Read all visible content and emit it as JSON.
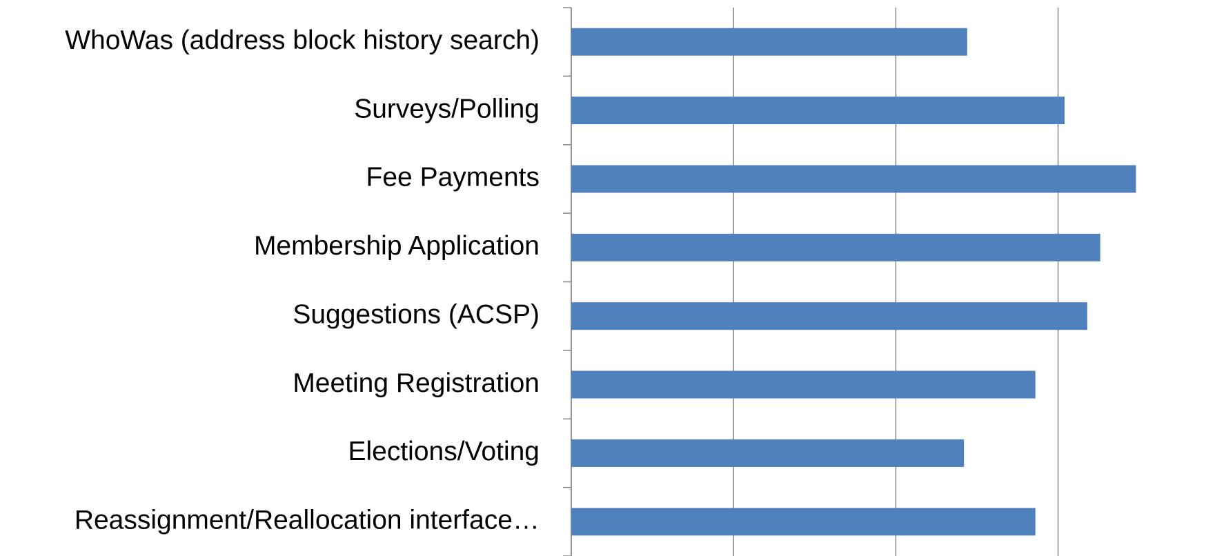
{
  "chart_data": {
    "type": "bar",
    "orientation": "horizontal",
    "categories": [
      "WhoWas (address block history search)",
      "Surveys/Polling",
      "Fee Payments",
      "Membership Application",
      "Suggestions (ACSP)",
      "Meeting Registration",
      "Elections/Voting",
      "Reassignment/Reallocation interface…"
    ],
    "values": [
      2.44,
      3.04,
      3.48,
      3.26,
      3.18,
      2.86,
      2.42,
      2.86
    ],
    "color": "#4f81bd",
    "xlim": [
      0,
      4
    ],
    "xticks": [
      0,
      1,
      2,
      3
    ],
    "grid": true
  }
}
